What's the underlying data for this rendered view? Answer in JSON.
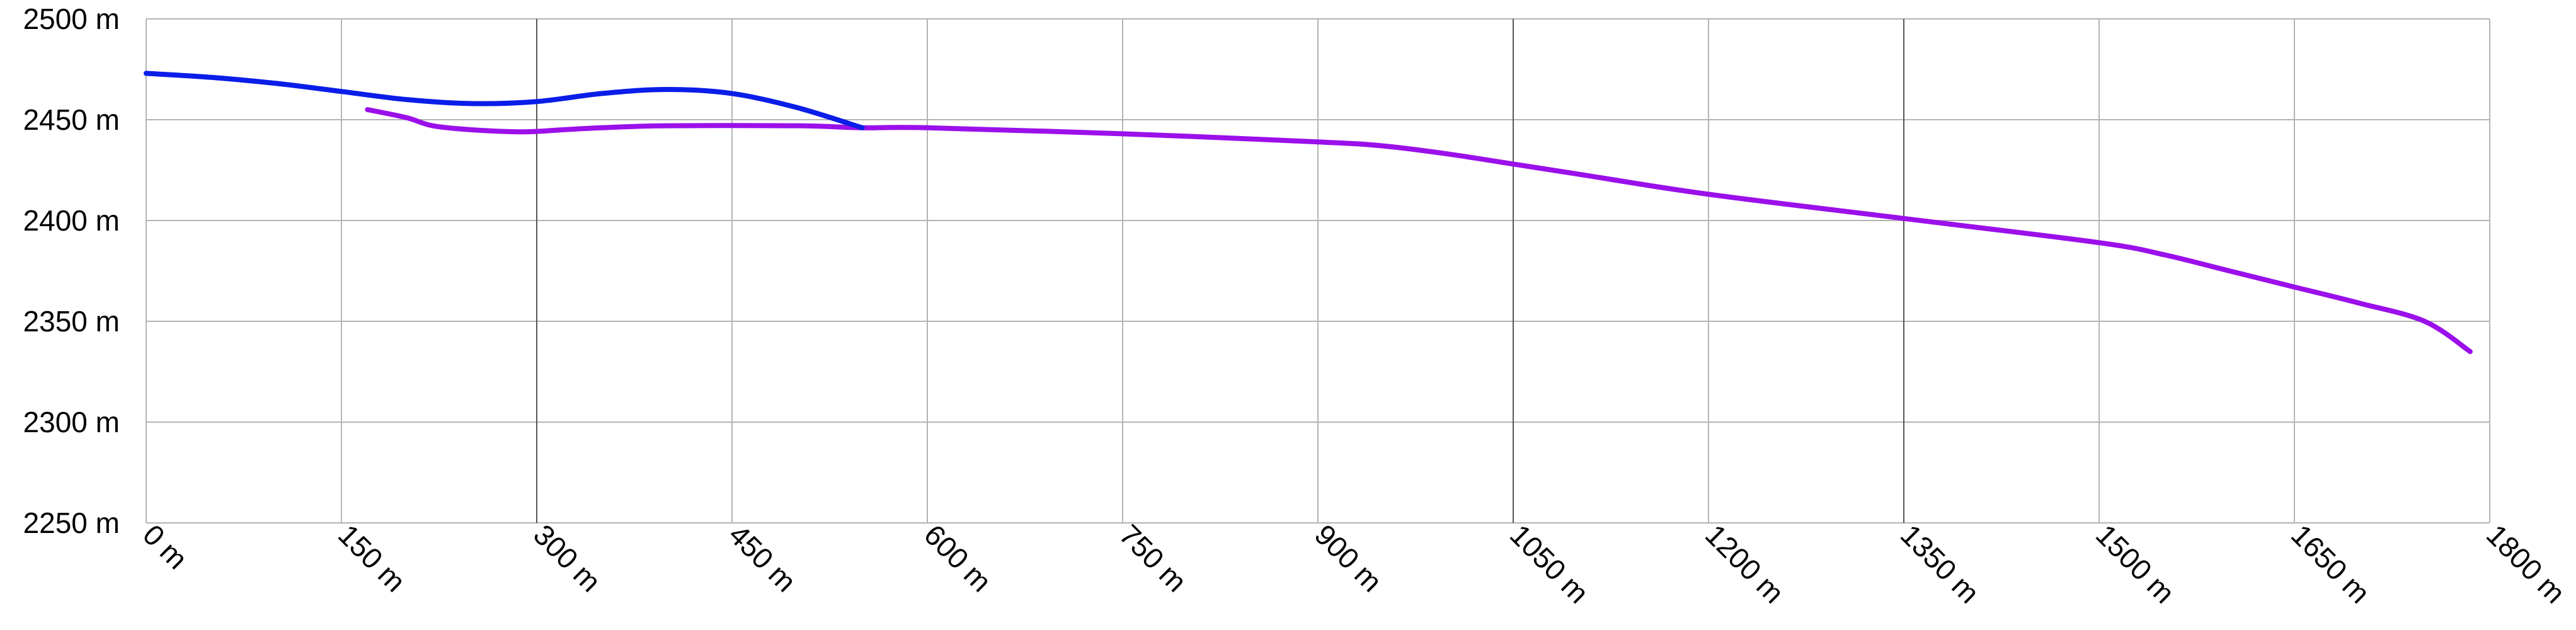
{
  "chart_data": {
    "type": "line",
    "title": "",
    "xlabel": "",
    "ylabel": "",
    "xlim": [
      0,
      1800
    ],
    "ylim": [
      2250,
      2500
    ],
    "x_ticks": [
      0,
      150,
      300,
      450,
      600,
      750,
      900,
      1050,
      1200,
      1350,
      1500,
      1650,
      1800
    ],
    "x_tick_labels": [
      "0 m",
      "150 m",
      "300 m",
      "450 m",
      "600 m",
      "750 m",
      "900 m",
      "1050 m",
      "1200 m",
      "1350 m",
      "1500 m",
      "1650 m",
      "1800 m"
    ],
    "y_ticks": [
      2250,
      2300,
      2350,
      2400,
      2450,
      2500
    ],
    "y_tick_labels": [
      "2250 m",
      "2300 m",
      "2350 m",
      "2400 m",
      "2450 m",
      "2500 m"
    ],
    "major_x_gridlines": [
      300,
      1050,
      1350
    ],
    "grid": true,
    "legend": "none",
    "series": [
      {
        "color": "#0b1de8",
        "x": [
          0,
          50,
          100,
          150,
          200,
          250,
          300,
          350,
          400,
          450,
          500,
          550
        ],
        "y": [
          2473,
          2471,
          2468,
          2464,
          2460,
          2458,
          2459,
          2463,
          2465,
          2463,
          2456,
          2446
        ]
      },
      {
        "color": "#9b10ea",
        "x": [
          170,
          200,
          220,
          250,
          290,
          320,
          350,
          400,
          500,
          550,
          600,
          750,
          900,
          950,
          1000,
          1050,
          1100,
          1200,
          1350,
          1500,
          1550,
          1600,
          1650,
          1700,
          1750,
          1785
        ],
        "y": [
          2455,
          2451,
          2447,
          2445,
          2444,
          2445,
          2446,
          2447,
          2447,
          2446,
          2446,
          2443,
          2439,
          2437,
          2433,
          2428,
          2423,
          2413,
          2401,
          2389,
          2383,
          2375,
          2367,
          2359,
          2350,
          2335
        ]
      }
    ]
  }
}
